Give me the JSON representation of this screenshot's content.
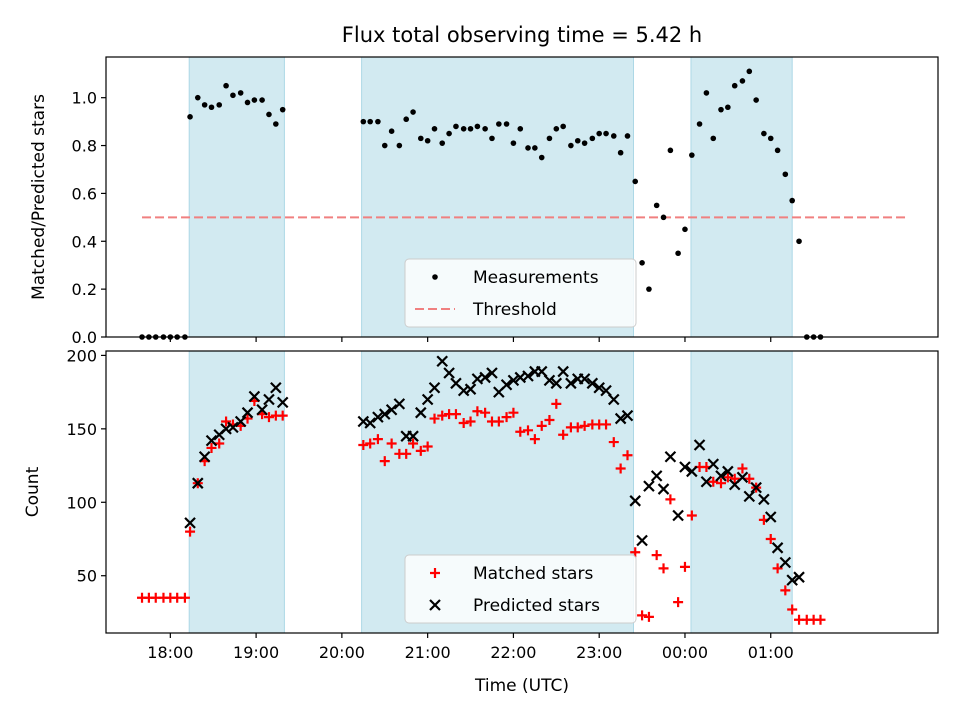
{
  "chart_data": [
    {
      "type": "scatter",
      "title": "Flux total observing time = 5.42 h",
      "xlabel": "",
      "ylabel": "Matched/Predicted stars",
      "ylim": [
        0,
        1.17
      ],
      "yticks": [
        "0.0",
        "0.2",
        "0.4",
        "0.6",
        "0.8",
        "1.0"
      ],
      "legend": {
        "position": "lower-center",
        "entries": [
          "Measurements",
          "Threshold"
        ]
      },
      "bands_hours": [
        [
          18.22,
          19.33
        ],
        [
          20.23,
          23.4
        ],
        [
          24.07,
          25.25
        ]
      ],
      "threshold": {
        "y": 0.5,
        "x": [
          17.67,
          26.6
        ],
        "color": "#f08080"
      },
      "series": [
        {
          "name": "Measurements",
          "color": "#000000",
          "points": [
            [
              17.67,
              0
            ],
            [
              17.75,
              0
            ],
            [
              17.83,
              0
            ],
            [
              17.92,
              0
            ],
            [
              18.0,
              0
            ],
            [
              18.08,
              0
            ],
            [
              18.17,
              0
            ],
            [
              18.23,
              0.92
            ],
            [
              18.32,
              1.0
            ],
            [
              18.4,
              0.97
            ],
            [
              18.48,
              0.96
            ],
            [
              18.57,
              0.97
            ],
            [
              18.65,
              1.05
            ],
            [
              18.73,
              1.01
            ],
            [
              18.82,
              1.02
            ],
            [
              18.9,
              0.98
            ],
            [
              18.98,
              0.99
            ],
            [
              19.07,
              0.99
            ],
            [
              19.15,
              0.93
            ],
            [
              19.23,
              0.89
            ],
            [
              19.31,
              0.95
            ],
            [
              20.25,
              0.9
            ],
            [
              20.33,
              0.9
            ],
            [
              20.42,
              0.9
            ],
            [
              20.5,
              0.8
            ],
            [
              20.58,
              0.86
            ],
            [
              20.67,
              0.8
            ],
            [
              20.75,
              0.91
            ],
            [
              20.83,
              0.94
            ],
            [
              20.92,
              0.83
            ],
            [
              21.0,
              0.82
            ],
            [
              21.08,
              0.87
            ],
            [
              21.17,
              0.81
            ],
            [
              21.25,
              0.85
            ],
            [
              21.33,
              0.88
            ],
            [
              21.42,
              0.87
            ],
            [
              21.5,
              0.87
            ],
            [
              21.58,
              0.88
            ],
            [
              21.67,
              0.87
            ],
            [
              21.75,
              0.83
            ],
            [
              21.83,
              0.89
            ],
            [
              21.92,
              0.89
            ],
            [
              22.0,
              0.81
            ],
            [
              22.08,
              0.87
            ],
            [
              22.17,
              0.79
            ],
            [
              22.25,
              0.79
            ],
            [
              22.33,
              0.75
            ],
            [
              22.42,
              0.83
            ],
            [
              22.5,
              0.87
            ],
            [
              22.58,
              0.88
            ],
            [
              22.67,
              0.8
            ],
            [
              22.75,
              0.82
            ],
            [
              22.83,
              0.81
            ],
            [
              22.92,
              0.83
            ],
            [
              23.0,
              0.85
            ],
            [
              23.08,
              0.85
            ],
            [
              23.17,
              0.84
            ],
            [
              23.25,
              0.77
            ],
            [
              23.33,
              0.84
            ],
            [
              23.42,
              0.65
            ],
            [
              23.5,
              0.31
            ],
            [
              23.58,
              0.2
            ],
            [
              23.67,
              0.55
            ],
            [
              23.75,
              0.5
            ],
            [
              23.83,
              0.78
            ],
            [
              23.92,
              0.35
            ],
            [
              24.0,
              0.45
            ],
            [
              24.08,
              0.76
            ],
            [
              24.17,
              0.89
            ],
            [
              24.25,
              1.02
            ],
            [
              24.33,
              0.83
            ],
            [
              24.42,
              0.95
            ],
            [
              24.5,
              0.96
            ],
            [
              24.58,
              1.05
            ],
            [
              24.67,
              1.07
            ],
            [
              24.75,
              1.11
            ],
            [
              24.83,
              0.99
            ],
            [
              24.92,
              0.85
            ],
            [
              25.0,
              0.83
            ],
            [
              25.08,
              0.78
            ],
            [
              25.17,
              0.68
            ],
            [
              25.25,
              0.57
            ],
            [
              25.33,
              0.4
            ],
            [
              25.42,
              0
            ],
            [
              25.5,
              0
            ],
            [
              25.58,
              0
            ]
          ]
        }
      ]
    },
    {
      "type": "scatter",
      "title": "",
      "xlabel": "Time (UTC)",
      "ylabel": "Count",
      "ylim": [
        11,
        203
      ],
      "xlim": [
        17.25,
        26.95
      ],
      "yticks": [
        "50",
        "100",
        "150",
        "200"
      ],
      "xticks": [
        "18:00",
        "19:00",
        "20:00",
        "21:00",
        "22:00",
        "23:00",
        "00:00",
        "01:00"
      ],
      "legend": {
        "position": "lower-center",
        "entries": [
          "Matched stars",
          "Predicted stars"
        ]
      },
      "bands_hours": [
        [
          18.22,
          19.33
        ],
        [
          20.23,
          23.4
        ],
        [
          24.07,
          25.25
        ]
      ],
      "series": [
        {
          "name": "Matched stars",
          "color": "#ff0000",
          "marker": "plus",
          "points": [
            [
              17.67,
              35
            ],
            [
              17.75,
              35
            ],
            [
              17.83,
              35
            ],
            [
              17.92,
              35
            ],
            [
              18.0,
              35
            ],
            [
              18.08,
              35
            ],
            [
              18.17,
              35
            ],
            [
              18.23,
              80
            ],
            [
              18.32,
              113
            ],
            [
              18.4,
              128
            ],
            [
              18.48,
              137
            ],
            [
              18.57,
              140
            ],
            [
              18.65,
              155
            ],
            [
              18.73,
              153
            ],
            [
              18.82,
              152
            ],
            [
              18.9,
              157
            ],
            [
              18.98,
              169
            ],
            [
              19.07,
              160
            ],
            [
              19.15,
              158
            ],
            [
              19.23,
              159
            ],
            [
              19.31,
              159
            ],
            [
              20.25,
              139
            ],
            [
              20.33,
              140
            ],
            [
              20.42,
              143
            ],
            [
              20.5,
              128
            ],
            [
              20.58,
              140
            ],
            [
              20.67,
              133
            ],
            [
              20.75,
              133
            ],
            [
              20.83,
              140
            ],
            [
              20.92,
              135
            ],
            [
              21.0,
              138
            ],
            [
              21.08,
              157
            ],
            [
              21.17,
              159
            ],
            [
              21.25,
              160
            ],
            [
              21.33,
              160
            ],
            [
              21.42,
              154
            ],
            [
              21.5,
              155
            ],
            [
              21.58,
              162
            ],
            [
              21.67,
              161
            ],
            [
              21.75,
              155
            ],
            [
              21.83,
              155
            ],
            [
              21.92,
              158
            ],
            [
              22.0,
              161
            ],
            [
              22.08,
              148
            ],
            [
              22.17,
              149
            ],
            [
              22.25,
              143
            ],
            [
              22.33,
              152
            ],
            [
              22.42,
              156
            ],
            [
              22.5,
              167
            ],
            [
              22.58,
              146
            ],
            [
              22.67,
              151
            ],
            [
              22.75,
              151
            ],
            [
              22.83,
              152
            ],
            [
              22.92,
              153
            ],
            [
              23.0,
              153
            ],
            [
              23.08,
              153
            ],
            [
              23.17,
              141
            ],
            [
              23.25,
              123
            ],
            [
              23.33,
              132
            ],
            [
              23.42,
              66
            ],
            [
              23.5,
              23
            ],
            [
              23.58,
              22
            ],
            [
              23.67,
              64
            ],
            [
              23.75,
              55
            ],
            [
              23.83,
              102
            ],
            [
              23.92,
              32
            ],
            [
              24.0,
              56
            ],
            [
              24.08,
              91
            ],
            [
              24.17,
              124
            ],
            [
              24.25,
              124
            ],
            [
              24.33,
              114
            ],
            [
              24.42,
              113
            ],
            [
              24.5,
              117
            ],
            [
              24.58,
              116
            ],
            [
              24.67,
              123
            ],
            [
              24.75,
              116
            ],
            [
              24.83,
              110
            ],
            [
              24.92,
              88
            ],
            [
              25.0,
              75
            ],
            [
              25.08,
              55
            ],
            [
              25.17,
              40
            ],
            [
              25.25,
              27
            ],
            [
              25.33,
              20
            ],
            [
              25.42,
              20
            ],
            [
              25.5,
              20
            ],
            [
              25.58,
              20
            ]
          ]
        },
        {
          "name": "Predicted stars",
          "color": "#000000",
          "marker": "x",
          "points": [
            [
              18.23,
              86
            ],
            [
              18.32,
              113
            ],
            [
              18.4,
              131
            ],
            [
              18.48,
              142
            ],
            [
              18.57,
              146
            ],
            [
              18.65,
              150
            ],
            [
              18.73,
              151
            ],
            [
              18.82,
              155
            ],
            [
              18.9,
              161
            ],
            [
              18.98,
              172
            ],
            [
              19.07,
              163
            ],
            [
              19.15,
              170
            ],
            [
              19.23,
              178
            ],
            [
              19.31,
              168
            ],
            [
              20.25,
              155
            ],
            [
              20.33,
              154
            ],
            [
              20.42,
              158
            ],
            [
              20.5,
              160
            ],
            [
              20.58,
              163
            ],
            [
              20.67,
              167
            ],
            [
              20.75,
              145
            ],
            [
              20.83,
              145
            ],
            [
              20.92,
              161
            ],
            [
              21.0,
              170
            ],
            [
              21.08,
              178
            ],
            [
              21.17,
              196
            ],
            [
              21.25,
              188
            ],
            [
              21.33,
              181
            ],
            [
              21.42,
              176
            ],
            [
              21.5,
              177
            ],
            [
              21.58,
              184
            ],
            [
              21.67,
              185
            ],
            [
              21.75,
              188
            ],
            [
              21.83,
              175
            ],
            [
              21.92,
              180
            ],
            [
              22.0,
              183
            ],
            [
              22.08,
              185
            ],
            [
              22.17,
              186
            ],
            [
              22.25,
              189
            ],
            [
              22.33,
              189
            ],
            [
              22.42,
              183
            ],
            [
              22.5,
              181
            ],
            [
              22.58,
              189
            ],
            [
              22.67,
              181
            ],
            [
              22.75,
              184
            ],
            [
              22.83,
              184
            ],
            [
              22.92,
              181
            ],
            [
              23.0,
              178
            ],
            [
              23.08,
              176
            ],
            [
              23.17,
              170
            ],
            [
              23.25,
              157
            ],
            [
              23.33,
              159
            ],
            [
              23.42,
              101
            ],
            [
              23.5,
              74
            ],
            [
              23.58,
              111
            ],
            [
              23.67,
              118
            ],
            [
              23.75,
              109
            ],
            [
              23.83,
              131
            ],
            [
              23.92,
              91
            ],
            [
              24.0,
              124
            ],
            [
              24.08,
              121
            ],
            [
              24.17,
              139
            ],
            [
              24.25,
              114
            ],
            [
              24.33,
              126
            ],
            [
              24.42,
              118
            ],
            [
              24.5,
              121
            ],
            [
              24.58,
              112
            ],
            [
              24.67,
              117
            ],
            [
              24.75,
              104
            ],
            [
              24.83,
              110
            ],
            [
              24.92,
              102
            ],
            [
              25.0,
              90
            ],
            [
              25.08,
              69
            ],
            [
              25.17,
              59
            ],
            [
              25.25,
              47
            ],
            [
              25.33,
              49
            ]
          ]
        }
      ]
    }
  ]
}
